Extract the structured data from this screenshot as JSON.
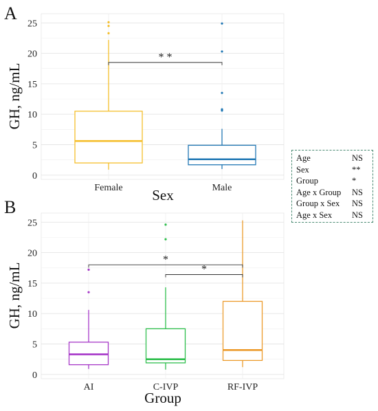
{
  "chart_data": [
    {
      "panel": "A",
      "type": "box",
      "xlabel": "Sex",
      "ylabel": "GH, ng/mL",
      "ylim": [
        -0.7,
        26.5
      ],
      "yticks": [
        0,
        5,
        10,
        15,
        20,
        25
      ],
      "grid": true,
      "categories": [
        "Female",
        "Male"
      ],
      "boxes": [
        {
          "category": "Female",
          "color": "#F5BE2A",
          "whisker_low": 0.9,
          "q1": 2.0,
          "median": 5.6,
          "q3": 10.5,
          "whisker_high": 22.2,
          "outliers": [
            23.3,
            24.5,
            25.1
          ]
        },
        {
          "category": "Male",
          "color": "#1F77B4",
          "whisker_low": 1.0,
          "q1": 1.7,
          "median": 2.6,
          "q3": 4.9,
          "whisker_high": 7.6,
          "outliers": [
            10.6,
            10.8,
            13.5,
            20.3,
            24.9
          ]
        }
      ],
      "brackets": [
        {
          "from": "Female",
          "to": "Male",
          "y": 18.5,
          "label": "* *"
        }
      ]
    },
    {
      "panel": "B",
      "type": "box",
      "xlabel": "Group",
      "ylabel": "GH, ng/mL",
      "ylim": [
        -0.7,
        26.5
      ],
      "yticks": [
        0,
        5,
        10,
        15,
        20,
        25
      ],
      "grid": true,
      "categories": [
        "AI",
        "C-IVP",
        "RF-IVP"
      ],
      "boxes": [
        {
          "category": "AI",
          "color": "#A637C8",
          "whisker_low": 0.9,
          "q1": 1.6,
          "median": 3.3,
          "q3": 5.3,
          "whisker_high": 10.6,
          "outliers": [
            13.5,
            17.2
          ]
        },
        {
          "category": "C-IVP",
          "color": "#2DBE4C",
          "whisker_low": 0.8,
          "q1": 1.9,
          "median": 2.5,
          "q3": 7.5,
          "whisker_high": 14.3,
          "outliers": [
            22.2,
            24.6
          ]
        },
        {
          "category": "RF-IVP",
          "color": "#EC9A2A",
          "whisker_low": 1.2,
          "q1": 2.3,
          "median": 4.0,
          "q3": 12.0,
          "whisker_high": 25.3,
          "outliers": []
        }
      ],
      "brackets": [
        {
          "from": "AI",
          "to": "RF-IVP",
          "y": 18.0,
          "label": "*"
        },
        {
          "from": "C-IVP",
          "to": "RF-IVP",
          "y": 16.4,
          "label": "*"
        }
      ]
    }
  ],
  "stats": [
    {
      "term": "Age",
      "value": "NS"
    },
    {
      "term": "Sex",
      "value": "**"
    },
    {
      "term": "Group",
      "value": "*"
    },
    {
      "term": "Age x Group",
      "value": "NS"
    },
    {
      "term": "Group x Sex",
      "value": "NS"
    },
    {
      "term": "Age x Sex",
      "value": "NS"
    }
  ]
}
